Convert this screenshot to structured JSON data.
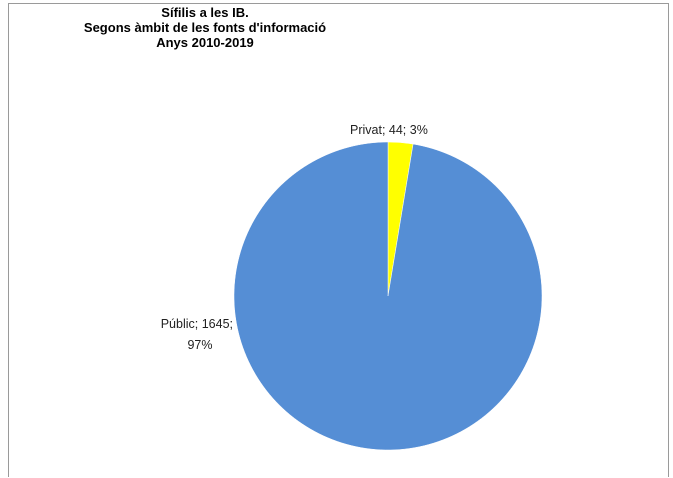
{
  "chart_data": {
    "type": "pie",
    "title": [
      "Sífilis a les IB.",
      "Segons àmbit de les fonts d'informació",
      "Anys 2010-2019"
    ],
    "slices": [
      {
        "label": "Privat",
        "value": 44,
        "percent": "3%",
        "color": "#FFFF00",
        "data_label": "Privat; 44; 3%"
      },
      {
        "label": "Públic",
        "value": 1645,
        "percent": "97%",
        "color": "#558ED5",
        "data_label_lines": [
          "Públic; 1645;",
          "97%"
        ]
      }
    ],
    "start_angle": "12 o'clock",
    "direction": "clockwise",
    "legend": "none"
  }
}
